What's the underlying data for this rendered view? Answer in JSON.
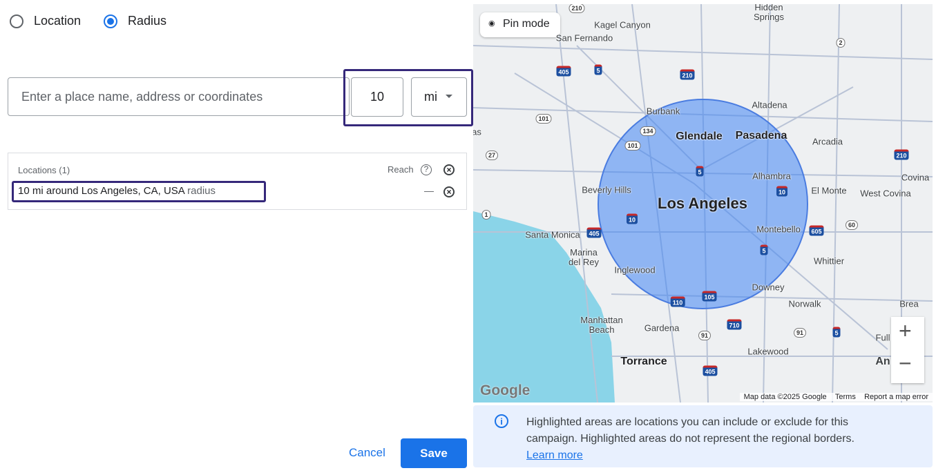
{
  "radio_options": [
    {
      "label": "Location",
      "selected": false
    },
    {
      "label": "Radius",
      "selected": true
    }
  ],
  "search": {
    "placeholder": "Enter a place name, address or coordinates",
    "radius": "10",
    "unit": "mi"
  },
  "locations": {
    "header": "Locations (1)",
    "reach_label": "Reach",
    "items": [
      {
        "text": "10 mi around Los Angeles, CA, USA",
        "suffix": "radius",
        "reach": "—"
      }
    ]
  },
  "map": {
    "pin_mode": "Pin mode",
    "places": [
      "Hidden Springs",
      "Kagel Canyon",
      "San Fernando",
      "Burbank",
      "Altadena",
      "Glendale",
      "Pasadena",
      "Arcadia",
      "Beverly Hills",
      "Alhambra",
      "El Monte",
      "Covina",
      "West Covina",
      "Los Angeles",
      "Santa Monica",
      "Montebello",
      "Marina del Rey",
      "Whittier",
      "Inglewood",
      "Downey",
      "Norwalk",
      "Brea",
      "Manhattan Beach",
      "Gardena",
      "Torrance",
      "Lakewood",
      "Full",
      "An",
      "as"
    ],
    "highways": [
      "210",
      "405",
      "5",
      "210",
      "2",
      "101",
      "134",
      "101",
      "5",
      "27",
      "210",
      "10",
      "10",
      "405",
      "605",
      "60",
      "1",
      "5",
      "110",
      "105",
      "710",
      "91",
      "91",
      "5",
      "405"
    ],
    "logo": "Google",
    "attribution": {
      "data": "Map data ©2025 Google",
      "terms": "Terms",
      "report": "Report a map error"
    }
  },
  "info": {
    "text": "Highlighted areas are locations you can include or exclude for this campaign. Highlighted areas do not represent the regional borders.",
    "link": "Learn more"
  },
  "buttons": {
    "cancel": "Cancel",
    "save": "Save"
  }
}
